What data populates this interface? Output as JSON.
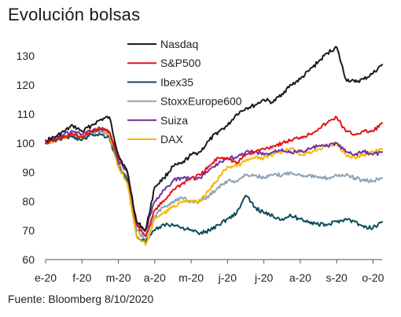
{
  "title": "Evolución bolsas",
  "source": "Fuente: Bloomberg 8/10/2020",
  "chart_data": {
    "type": "line",
    "title": "Evolución bolsas",
    "xlabel": "",
    "ylabel": "",
    "ylim": [
      60,
      135
    ],
    "yticks": [
      60,
      70,
      80,
      90,
      100,
      110,
      120,
      130
    ],
    "xlim": [
      0,
      9.25
    ],
    "xtick_labels": [
      "e-20",
      "f-20",
      "m-20",
      "a-20",
      "m-20",
      "j-20",
      "j-20",
      "a-20",
      "s-20",
      "o-20"
    ],
    "grid": false,
    "legend_position": "top-center",
    "x": [
      0,
      0.25,
      0.5,
      0.75,
      1.0,
      1.25,
      1.5,
      1.75,
      2.0,
      2.25,
      2.5,
      2.75,
      3.0,
      3.25,
      3.5,
      3.75,
      4.0,
      4.25,
      4.5,
      4.75,
      5.0,
      5.25,
      5.5,
      5.75,
      6.0,
      6.25,
      6.5,
      6.75,
      7.0,
      7.25,
      7.5,
      7.75,
      8.0,
      8.25,
      8.5,
      8.75,
      9.0,
      9.25
    ],
    "series": [
      {
        "name": "Nasdaq",
        "color": "#1a1a1a",
        "values": [
          101,
          102,
          104,
          106,
          104,
          106,
          108,
          109,
          96,
          90,
          73,
          70,
          85,
          88,
          92,
          93,
          96,
          97,
          101,
          104,
          106,
          110,
          112,
          113,
          115,
          114,
          117,
          120,
          122,
          125,
          128,
          131,
          133,
          122,
          121,
          122,
          124,
          127
        ]
      },
      {
        "name": "S&P500",
        "color": "#e3141b",
        "values": [
          100,
          101,
          102,
          103,
          102,
          104,
          105,
          104,
          95,
          90,
          72,
          68,
          77,
          80,
          84,
          86,
          88,
          89,
          92,
          95,
          95,
          93,
          96,
          97,
          98,
          99,
          100,
          101,
          102,
          103,
          105,
          107,
          109,
          104,
          103,
          104,
          104,
          107
        ]
      },
      {
        "name": "Ibex35",
        "color": "#0d4c5c",
        "values": [
          100,
          101,
          102,
          102,
          101,
          103,
          103,
          102,
          92,
          87,
          68,
          66,
          70,
          72,
          72,
          71,
          70,
          69,
          70,
          72,
          74,
          76,
          82,
          78,
          76,
          75,
          74,
          75,
          74,
          73,
          72,
          72,
          73,
          74,
          73,
          71,
          71,
          73
        ]
      },
      {
        "name": "StoxxEurope600",
        "color": "#8da2b4",
        "values": [
          100,
          101,
          102,
          103,
          102,
          103,
          104,
          103,
          93,
          88,
          70,
          67,
          75,
          78,
          80,
          81,
          80,
          80,
          82,
          85,
          87,
          87,
          89,
          89,
          88,
          89,
          89,
          90,
          89,
          89,
          88,
          88,
          89,
          89,
          88,
          87,
          87,
          88
        ]
      },
      {
        "name": "Suiza",
        "color": "#7030a0",
        "values": [
          100,
          102,
          103,
          104,
          103,
          104,
          105,
          104,
          94,
          90,
          72,
          70,
          80,
          84,
          87,
          88,
          88,
          88,
          91,
          93,
          95,
          95,
          97,
          97,
          96,
          97,
          98,
          97,
          97,
          98,
          99,
          99,
          100,
          97,
          96,
          97,
          96,
          97
        ]
      },
      {
        "name": "DAX",
        "color": "#f5b800",
        "values": [
          100,
          101,
          102,
          103,
          102,
          104,
          105,
          103,
          92,
          86,
          68,
          65,
          74,
          76,
          78,
          80,
          80,
          80,
          84,
          88,
          92,
          92,
          94,
          95,
          95,
          96,
          97,
          98,
          96,
          97,
          98,
          99,
          100,
          96,
          95,
          96,
          97,
          98
        ]
      }
    ]
  }
}
